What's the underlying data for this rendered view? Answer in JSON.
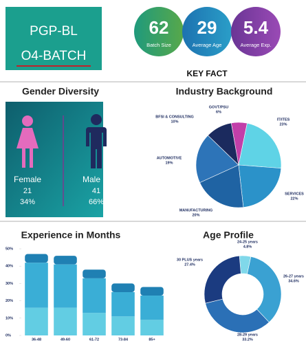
{
  "header": {
    "line1": "PGP-BL",
    "line2": "O4-BATCH"
  },
  "key_facts": {
    "title": "KEY FACT",
    "items": [
      {
        "value": "62",
        "label": "Batch Size"
      },
      {
        "value": "29",
        "label": "Average Age"
      },
      {
        "value": "5.4",
        "label": "Average Exp."
      }
    ]
  },
  "gender": {
    "title": "Gender Diversity",
    "female": {
      "label": "Female",
      "count": "21",
      "percent": "34%"
    },
    "male": {
      "label": "Male",
      "count": "41",
      "percent": "66%"
    }
  },
  "chart_data": [
    {
      "type": "pie",
      "title": "Industry Background",
      "categories": [
        "GOVT/PSU",
        "IT/ITES",
        "SERVICES",
        "MANUFACTURING",
        "AUTOMOTIVE",
        "BFSI & CONSULTING"
      ],
      "values": [
        6,
        23,
        22,
        20,
        19,
        10
      ],
      "value_labels": [
        "6%",
        "23%",
        "22%",
        "20%",
        "19%",
        "10%"
      ],
      "colors": [
        "#c23fa9",
        "#5fd3e6",
        "#2b92c9",
        "#1f63a3",
        "#2d74b8",
        "#1b2a5e"
      ]
    },
    {
      "type": "bar",
      "title": "Experience in Months",
      "stacked": true,
      "categories": [
        "36-48",
        "49-60",
        "61-72",
        "73-84",
        "85+"
      ],
      "series": [
        {
          "color": "#62cde3",
          "values": [
            16,
            16,
            13,
            11,
            9
          ]
        },
        {
          "color": "#3aaed6",
          "values": [
            26,
            25,
            20,
            14,
            14
          ]
        },
        {
          "color": "#1f80b3",
          "values": [
            5,
            5,
            5,
            5,
            5
          ]
        }
      ],
      "ylim": [
        0,
        50
      ],
      "yticks": [
        {
          "value": 0,
          "label": "0%"
        },
        {
          "value": 10,
          "label": "10%"
        },
        {
          "value": 20,
          "label": "20%"
        },
        {
          "value": 30,
          "label": "30%"
        },
        {
          "value": 40,
          "label": "40%"
        },
        {
          "value": 50,
          "label": "50%"
        }
      ]
    },
    {
      "type": "donut",
      "title": "Age Profile",
      "categories": [
        "24-25 years",
        "26-27 years",
        "28-29 years",
        "30 PLUS years"
      ],
      "values": [
        4.8,
        34.6,
        33.2,
        27.4
      ],
      "value_labels": [
        "4.8%",
        "34.6%",
        "33.2%",
        "27.4%"
      ],
      "colors": [
        "#80d8ea",
        "#3aa1d2",
        "#2b70b6",
        "#1b3b80"
      ]
    }
  ]
}
